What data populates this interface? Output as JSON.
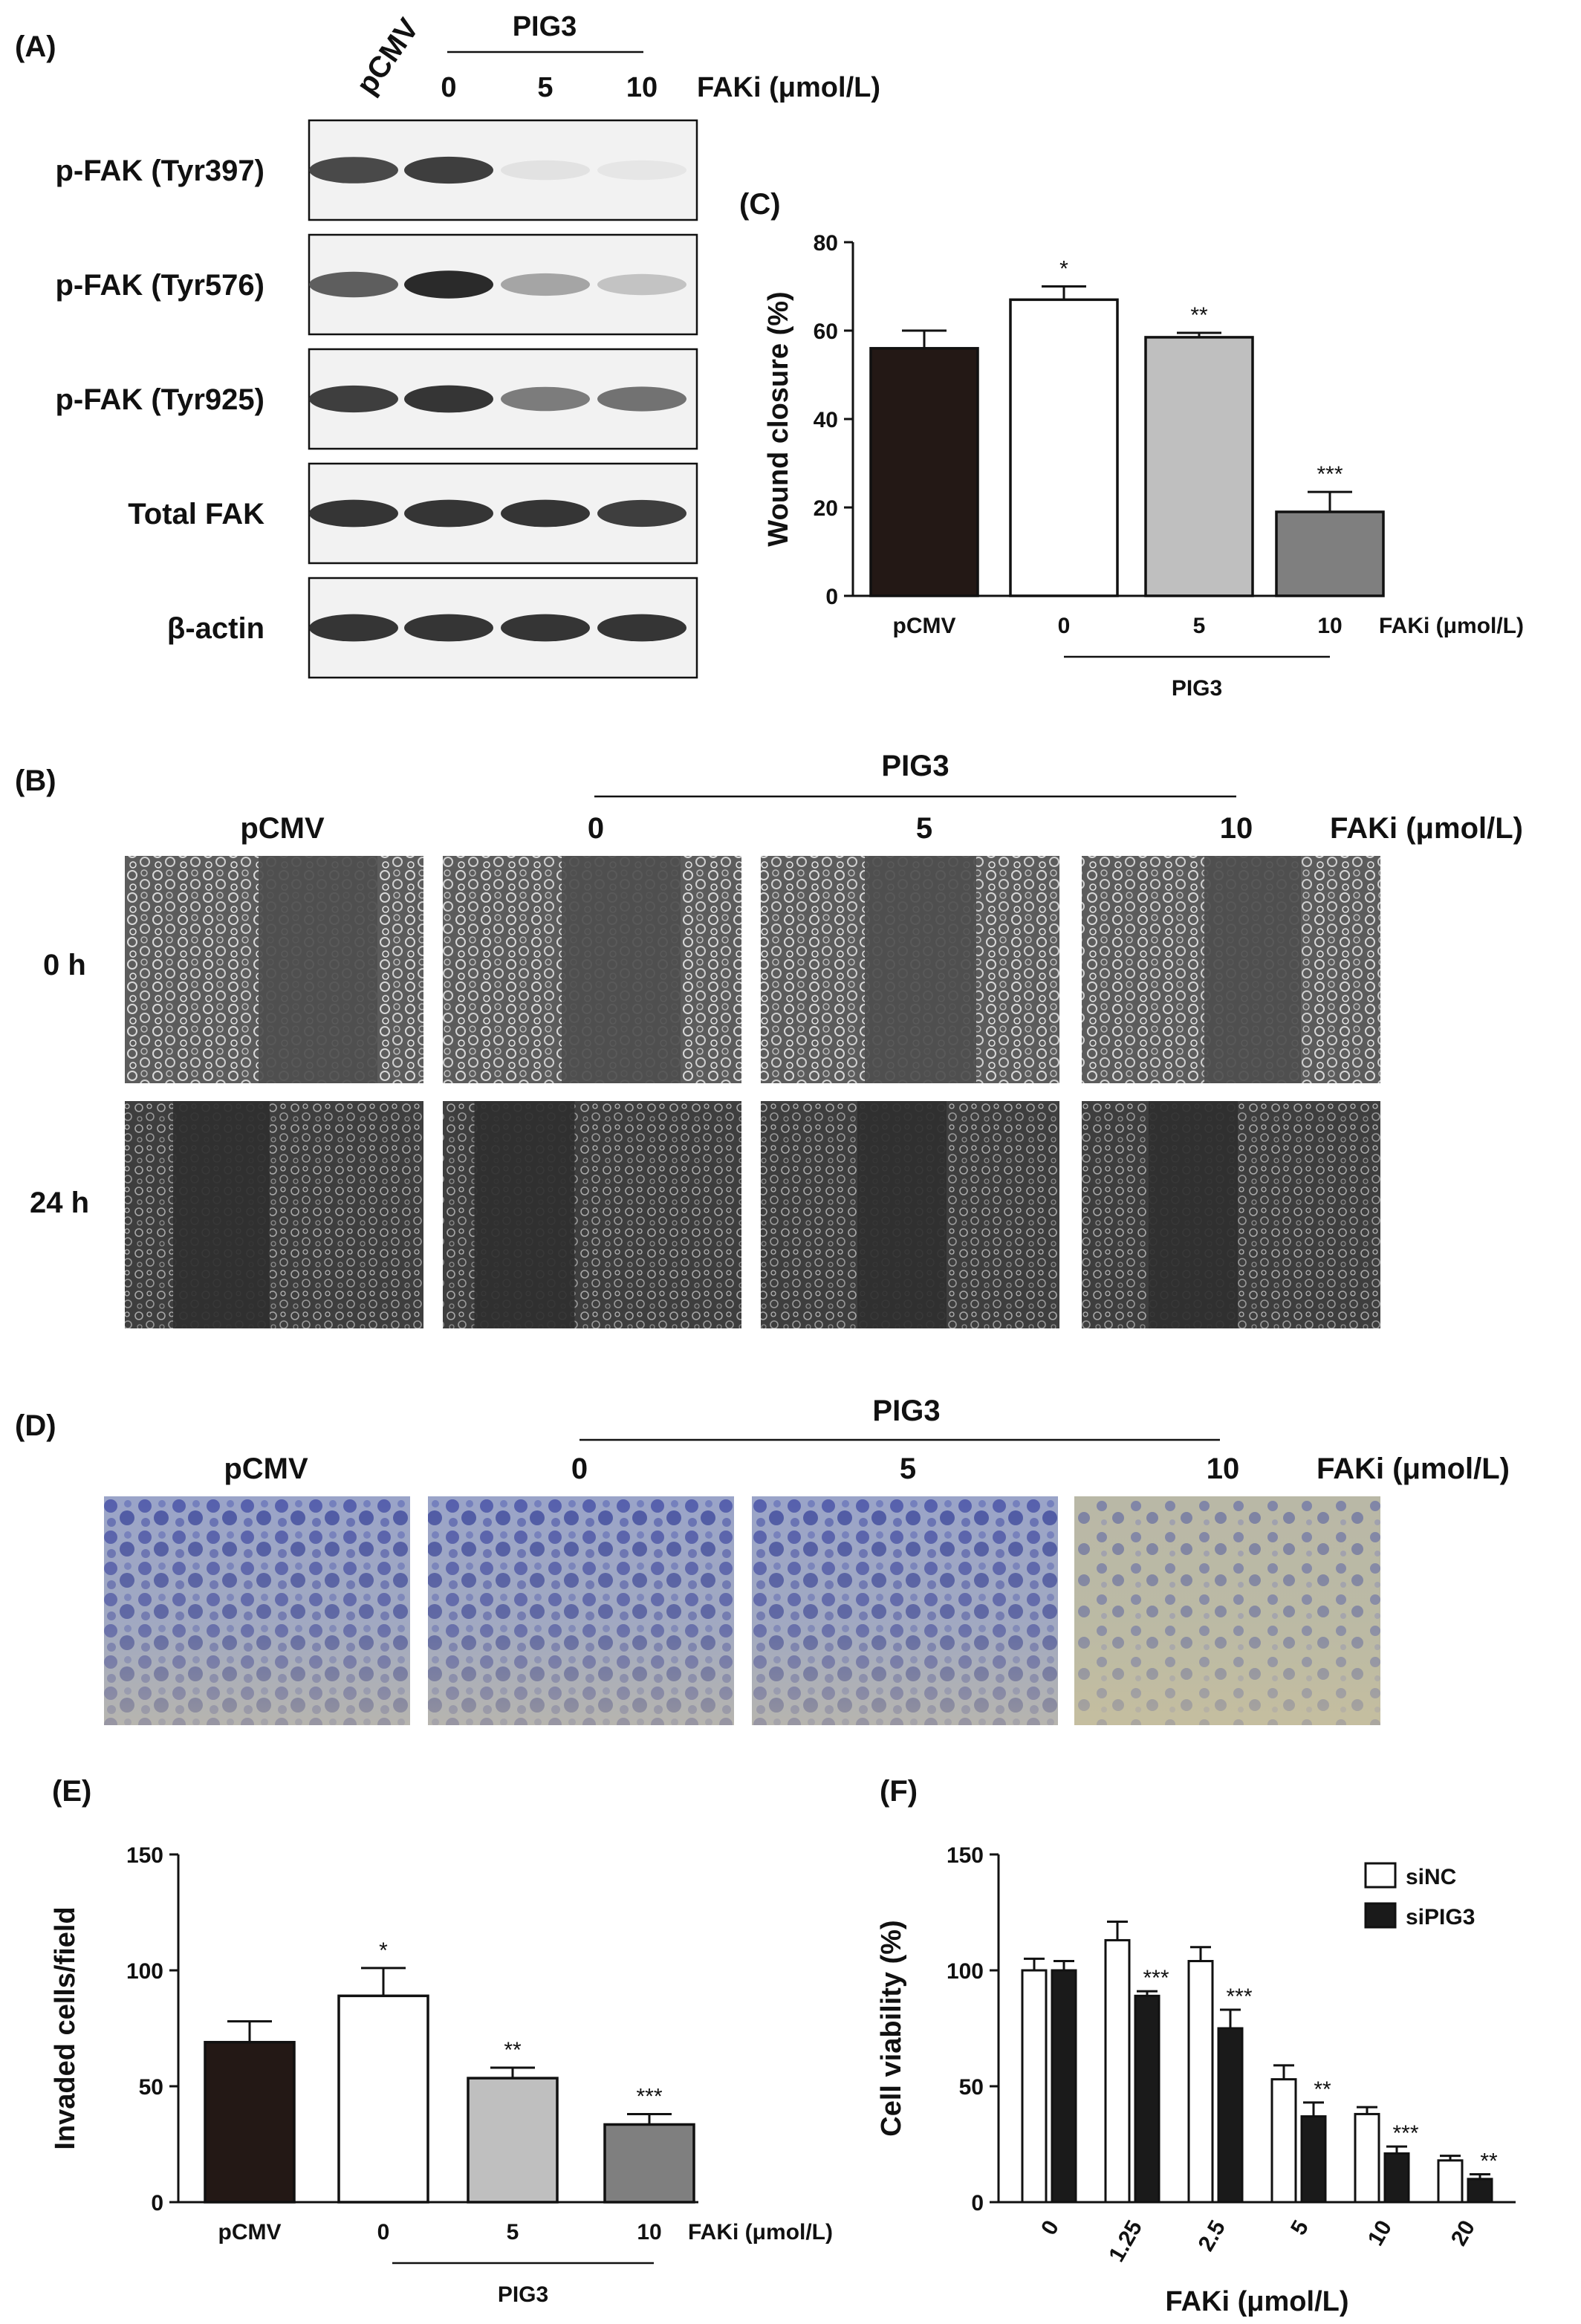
{
  "panel_labels": {
    "a": "(A)",
    "b": "(B)",
    "c": "(C)",
    "d": "(D)",
    "e": "(E)",
    "f": "(F)"
  },
  "treatment": {
    "control": "pCMV",
    "group": "PIG3",
    "doses": [
      "0",
      "5",
      "10"
    ],
    "fak_label": "FAKi (μmol/L)"
  },
  "western_blot": {
    "rows": [
      {
        "label": "p-FAK (Tyr397)",
        "intensity": [
          0.8,
          0.85,
          0.05,
          0.03
        ]
      },
      {
        "label": "p-FAK (Tyr576)",
        "intensity": [
          0.7,
          0.95,
          0.35,
          0.2
        ]
      },
      {
        "label": "p-FAK (Tyr925)",
        "intensity": [
          0.85,
          0.9,
          0.55,
          0.6
        ]
      },
      {
        "label": "Total FAK",
        "intensity": [
          0.9,
          0.9,
          0.9,
          0.85
        ]
      },
      {
        "label": "β-actin",
        "intensity": [
          0.9,
          0.9,
          0.9,
          0.9
        ]
      }
    ]
  },
  "wound_images": {
    "times": [
      "0 h",
      "24 h"
    ]
  },
  "chart_data": [
    {
      "panel": "C",
      "type": "bar",
      "categories": [
        "pCMV",
        "0",
        "5",
        "10"
      ],
      "values": [
        56,
        67,
        58.5,
        19
      ],
      "errors": [
        4,
        3,
        1,
        4.5
      ],
      "significance": [
        "",
        "*",
        "**",
        "***"
      ],
      "colors": [
        "#231815",
        "#ffffff",
        "#bfbfbf",
        "#7f7f7f"
      ],
      "ylabel": "Wound closure (%)",
      "ylim": [
        0,
        80
      ],
      "yticks": [
        0,
        20,
        40,
        60,
        80
      ],
      "xlabel": "FAKi (μmol/L)",
      "group_label": "PIG3"
    },
    {
      "panel": "E",
      "type": "bar",
      "categories": [
        "pCMV",
        "0",
        "5",
        "10"
      ],
      "values": [
        69,
        89,
        53.5,
        33.5
      ],
      "errors": [
        9,
        12,
        4.5,
        4.5
      ],
      "significance": [
        "",
        "*",
        "**",
        "***"
      ],
      "colors": [
        "#231815",
        "#ffffff",
        "#bfbfbf",
        "#7f7f7f"
      ],
      "ylabel": "Invaded cells/field",
      "ylim": [
        0,
        150
      ],
      "yticks": [
        0,
        50,
        100,
        150
      ],
      "xlabel": "FAKi (μmol/L)",
      "group_label": "PIG3"
    },
    {
      "panel": "F",
      "type": "bar",
      "categories": [
        "0",
        "1.25",
        "2.5",
        "5",
        "10",
        "20"
      ],
      "series": [
        {
          "name": "siNC",
          "values": [
            100,
            113,
            104,
            53,
            38,
            18
          ],
          "errors": [
            5,
            8,
            6,
            6,
            3,
            2
          ],
          "color": "#ffffff",
          "significance": [
            "",
            "",
            "",
            "",
            "",
            ""
          ]
        },
        {
          "name": "siPIG3",
          "values": [
            100,
            89,
            75,
            37,
            21,
            10
          ],
          "errors": [
            4,
            2,
            8,
            6,
            3,
            2
          ],
          "color": "#1a1a1a",
          "significance": [
            "",
            "***",
            "***",
            "**",
            "***",
            "**"
          ]
        }
      ],
      "ylabel": "Cell viability (%)",
      "ylim": [
        0,
        150
      ],
      "yticks": [
        0,
        50,
        100,
        150
      ],
      "xlabel": "FAKi (μmol/L)",
      "legend": "top-right"
    }
  ]
}
